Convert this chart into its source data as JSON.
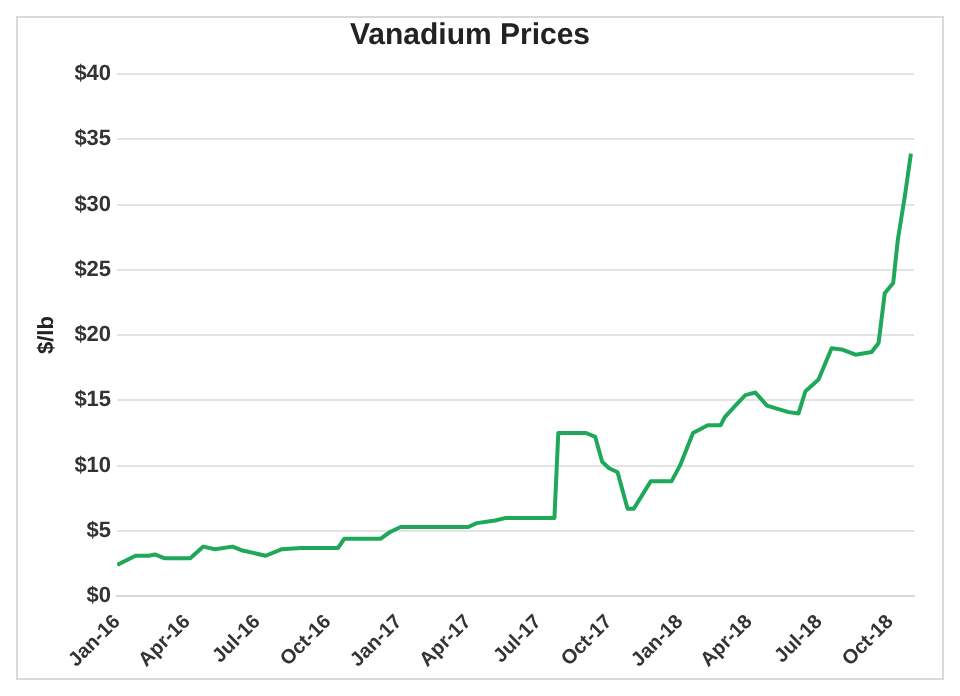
{
  "chart_data": {
    "type": "line",
    "title": "Vanadium Prices",
    "ylabel": "$/lb",
    "x": [
      "2016-01-01",
      "2016-01-25",
      "2016-02-11",
      "2016-02-19",
      "2016-03-03",
      "2016-04-05",
      "2016-04-22",
      "2016-05-07",
      "2016-05-30",
      "2016-06-12",
      "2016-07-12",
      "2016-08-02",
      "2016-08-27",
      "2016-10-14",
      "2016-10-22",
      "2016-12-08",
      "2016-12-20",
      "2017-01-03",
      "2017-04-01",
      "2017-04-12",
      "2017-05-06",
      "2017-05-20",
      "2017-07-22",
      "2017-07-27",
      "2017-09-01",
      "2017-09-13",
      "2017-09-22",
      "2017-10-01",
      "2017-10-12",
      "2017-10-25",
      "2017-11-02",
      "2017-11-24",
      "2017-12-21",
      "2018-01-01",
      "2018-01-18",
      "2018-02-06",
      "2018-02-23",
      "2018-02-28",
      "2018-03-14",
      "2018-03-27",
      "2018-04-09",
      "2018-04-24",
      "2018-05-22",
      "2018-06-04",
      "2018-06-13",
      "2018-06-30",
      "2018-07-17",
      "2018-07-30",
      "2018-08-17",
      "2018-09-07",
      "2018-09-16",
      "2018-09-24",
      "2018-10-05",
      "2018-10-11",
      "2018-10-20",
      "2018-10-28"
    ],
    "series": [
      {
        "color": "#1fa85a",
        "values": [
          2.4,
          3.1,
          3.1,
          3.2,
          2.9,
          2.9,
          3.8,
          3.6,
          3.8,
          3.5,
          3.1,
          3.6,
          3.7,
          3.7,
          4.4,
          4.4,
          4.9,
          5.3,
          5.3,
          5.6,
          5.8,
          6.0,
          6.0,
          12.5,
          12.5,
          12.2,
          10.3,
          9.8,
          9.5,
          6.7,
          6.7,
          8.8,
          8.8,
          10.0,
          12.5,
          13.1,
          13.1,
          13.7,
          14.6,
          15.4,
          15.6,
          14.6,
          14.1,
          14.0,
          15.7,
          16.6,
          19.0,
          18.9,
          18.5,
          18.7,
          19.4,
          23.2,
          24.0,
          27.3,
          30.6,
          33.9
        ]
      }
    ],
    "xlim": [
      "2016-01-01",
      "2018-11-01"
    ],
    "xticks": [
      {
        "value": "2016-01-01",
        "label": "Jan-16"
      },
      {
        "value": "2016-04-01",
        "label": "Apr-16"
      },
      {
        "value": "2016-07-01",
        "label": "Jul-16"
      },
      {
        "value": "2016-10-01",
        "label": "Oct-16"
      },
      {
        "value": "2017-01-01",
        "label": "Jan-17"
      },
      {
        "value": "2017-04-01",
        "label": "Apr-17"
      },
      {
        "value": "2017-07-01",
        "label": "Jul-17"
      },
      {
        "value": "2017-10-01",
        "label": "Oct-17"
      },
      {
        "value": "2018-01-01",
        "label": "Jan-18"
      },
      {
        "value": "2018-04-01",
        "label": "Apr-18"
      },
      {
        "value": "2018-07-01",
        "label": "Jul-18"
      },
      {
        "value": "2018-10-01",
        "label": "Oct-18"
      }
    ],
    "ylim": [
      0,
      40
    ],
    "yticks": [
      {
        "value": 0,
        "label": "$0"
      },
      {
        "value": 5,
        "label": "$5"
      },
      {
        "value": 10,
        "label": "$10"
      },
      {
        "value": 15,
        "label": "$15"
      },
      {
        "value": 20,
        "label": "$20"
      },
      {
        "value": 25,
        "label": "$25"
      },
      {
        "value": 30,
        "label": "$30"
      },
      {
        "value": 35,
        "label": "$35"
      },
      {
        "value": 40,
        "label": "$40"
      }
    ],
    "grid": "y",
    "legend": false,
    "marker": "none",
    "line_style": "solid"
  }
}
